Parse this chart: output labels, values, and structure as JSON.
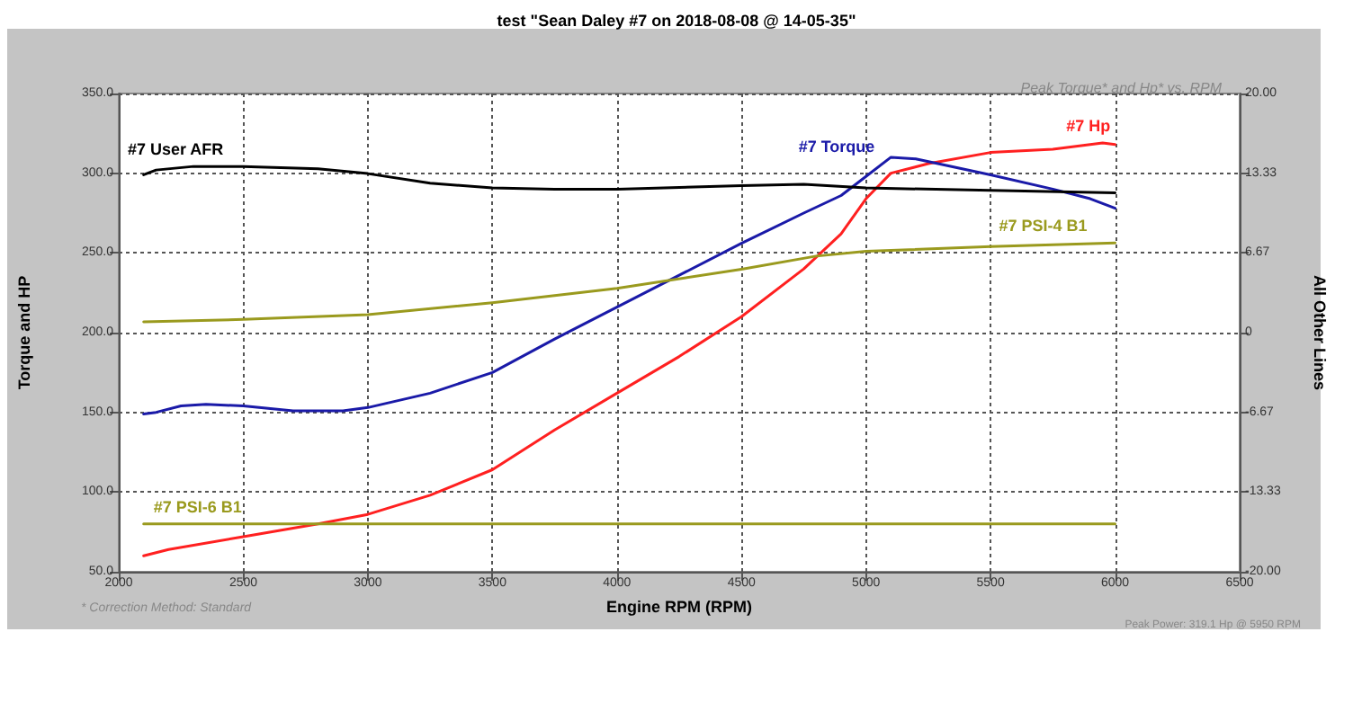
{
  "chart_data": {
    "type": "line",
    "title": "test \"Sean Daley #7 on 2018-08-08 @ 14-05-35\"",
    "subtitle": "Peak Torque* and Hp* vs. RPM",
    "xlabel": "Engine RPM (RPM)",
    "ylabel": "Torque and HP",
    "y2label": "All Other Lines",
    "annotations": [
      "* Correction Method: Standard",
      "Peak Power: 319.1 Hp @ 5950 RPM"
    ],
    "xlim": [
      2000,
      6500
    ],
    "xticks": [
      2000,
      2500,
      3000,
      3500,
      4000,
      4500,
      5000,
      5500,
      6000,
      6500
    ],
    "ylim": [
      50,
      350
    ],
    "yticks": [
      {
        "value": 50,
        "label": "50.0"
      },
      {
        "value": 100,
        "label": "100.0"
      },
      {
        "value": 150,
        "label": "150.0"
      },
      {
        "value": 200,
        "label": "200.0"
      },
      {
        "value": 250,
        "label": "250.0"
      },
      {
        "value": 300,
        "label": "300.0"
      },
      {
        "value": 350,
        "label": "350.0"
      }
    ],
    "y2lim": [
      -20,
      20
    ],
    "y2ticks": [
      {
        "value": -20,
        "label": "-20.00"
      },
      {
        "value": -13.33,
        "label": "-13.33"
      },
      {
        "value": -6.67,
        "label": "-6.67"
      },
      0,
      {
        "value": 6.67,
        "label": "6.67"
      },
      {
        "value": 13.33,
        "label": "13.33"
      },
      {
        "value": 20,
        "label": "20.00"
      }
    ],
    "grid": true,
    "legend": false,
    "line_style": "solid",
    "series": [
      {
        "name": "#7 Hp",
        "color": "#ff2020",
        "x": [
          2100,
          2200,
          2500,
          2800,
          3000,
          3250,
          3500,
          3750,
          4000,
          4250,
          4500,
          4750,
          4900,
          5000,
          5100,
          5250,
          5500,
          5750,
          5950,
          6000
        ],
        "values": [
          60,
          64,
          72,
          80,
          86,
          98,
          114,
          139,
          162,
          185,
          210,
          240,
          262,
          284,
          300,
          306,
          313,
          315,
          319,
          318
        ]
      },
      {
        "name": "#7 Torque",
        "color": "#1a1aa8",
        "x": [
          2100,
          2150,
          2250,
          2350,
          2500,
          2700,
          2900,
          3000,
          3250,
          3500,
          3750,
          4000,
          4250,
          4500,
          4750,
          4900,
          5000,
          5100,
          5200,
          5500,
          5750,
          5900,
          6000
        ],
        "values": [
          149,
          150,
          154,
          155,
          154,
          151,
          151,
          153,
          162,
          175,
          196,
          216,
          236,
          256,
          275,
          286,
          298,
          310,
          309,
          299,
          290,
          284,
          278
        ]
      },
      {
        "name": "#7 User AFR",
        "color": "#000000",
        "axis": "y2",
        "x": [
          2100,
          2150,
          2300,
          2500,
          2800,
          3000,
          3250,
          3500,
          3750,
          4000,
          4500,
          4750,
          5000,
          5500,
          6000
        ],
        "values": [
          13.2,
          13.6,
          13.9,
          13.9,
          13.7,
          13.3,
          12.5,
          12.1,
          12.0,
          12.0,
          12.3,
          12.4,
          12.1,
          11.9,
          11.7
        ]
      },
      {
        "name": "#7 PSI-4 B1",
        "color": "#9a9a1e",
        "axis": "y2",
        "x": [
          2100,
          2500,
          3000,
          3500,
          4000,
          4500,
          4800,
          5000,
          5500,
          6000
        ],
        "values": [
          0.9,
          1.1,
          1.5,
          2.5,
          3.7,
          5.3,
          6.4,
          6.8,
          7.2,
          7.5
        ]
      },
      {
        "name": "#7 PSI-6 B1",
        "color": "#9a9a1e",
        "axis": "y2",
        "x": [
          2100,
          6000
        ],
        "values": [
          -16,
          -16
        ]
      }
    ]
  }
}
